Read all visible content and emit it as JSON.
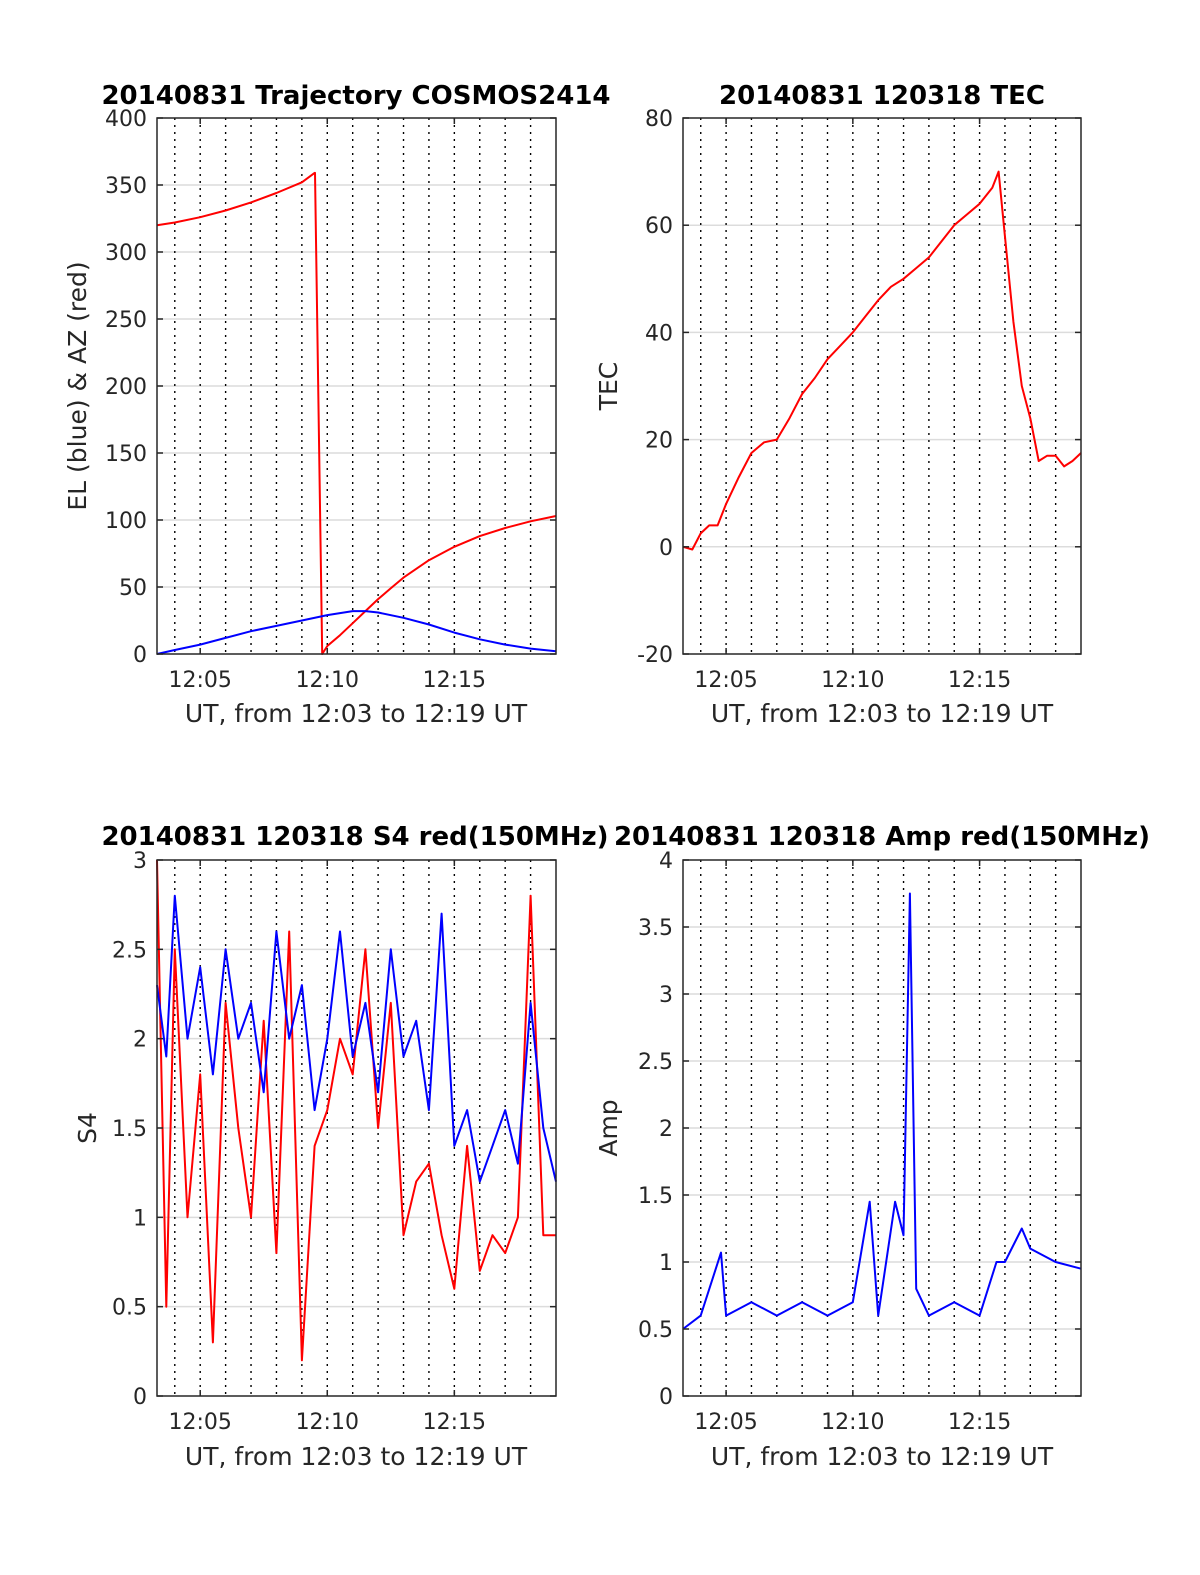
{
  "chart_data": [
    {
      "id": "p1",
      "type": "line",
      "title": "20140831 Trajectory COSMOS2414",
      "xlabel": "UT, from 12:03 to 12:19 UT",
      "ylabel": "EL (blue) & AZ (red)",
      "xlim": [
        "12:03:18",
        "12:19:00"
      ],
      "ylim": [
        0,
        400
      ],
      "yticks": [
        0,
        50,
        100,
        150,
        200,
        250,
        300,
        350,
        400
      ],
      "xticks": [
        "12:05",
        "12:10",
        "12:15"
      ],
      "grid": true,
      "colors": {
        "AZ": "#ff0000",
        "EL": "#0000ff"
      },
      "series": [
        {
          "color": "#ff0000",
          "x": [
            "12:03:18",
            "12:04:00",
            "12:05:00",
            "12:06:00",
            "12:07:00",
            "12:08:00",
            "12:09:00",
            "12:09:30",
            "12:09:31",
            "12:09:48",
            "12:10:00",
            "12:10:30",
            "12:11:00",
            "12:11:30",
            "12:12:00",
            "12:12:30",
            "12:13:00",
            "12:14:00",
            "12:15:00",
            "12:16:00",
            "12:17:00",
            "12:18:00",
            "12:19:00"
          ],
          "values": [
            320,
            322,
            326,
            331,
            337,
            344,
            352,
            359,
            359,
            0,
            6,
            14,
            23,
            32,
            41,
            49,
            57,
            70,
            80,
            88,
            94,
            99,
            103
          ]
        },
        {
          "color": "#0000ff",
          "x": [
            "12:03:18",
            "12:04:00",
            "12:05:00",
            "12:06:00",
            "12:07:00",
            "12:08:00",
            "12:09:00",
            "12:10:00",
            "12:11:00",
            "12:11:30",
            "12:12:00",
            "12:13:00",
            "12:14:00",
            "12:15:00",
            "12:16:00",
            "12:17:00",
            "12:18:00",
            "12:19:00"
          ],
          "values": [
            0,
            3,
            7,
            12,
            17,
            21,
            25,
            29,
            32,
            32,
            31,
            27,
            22,
            16,
            11,
            7,
            4,
            2
          ]
        }
      ]
    },
    {
      "id": "p2",
      "type": "line",
      "title": "20140831 120318 TEC",
      "xlabel": "UT, from 12:03 to 12:19 UT",
      "ylabel": "TEC",
      "xlim": [
        "12:03:18",
        "12:19:00"
      ],
      "ylim": [
        -20,
        80
      ],
      "yticks": [
        -20,
        0,
        20,
        40,
        60,
        80
      ],
      "xticks": [
        "12:05",
        "12:10",
        "12:15"
      ],
      "grid": true,
      "series": [
        {
          "color": "#ff0000",
          "x": [
            "12:03:18",
            "12:03:40",
            "12:04:00",
            "12:04:20",
            "12:04:40",
            "12:05:00",
            "12:05:30",
            "12:06:00",
            "12:06:30",
            "12:07:00",
            "12:07:30",
            "12:08:00",
            "12:08:30",
            "12:09:00",
            "12:09:30",
            "12:10:00",
            "12:10:30",
            "12:11:00",
            "12:11:30",
            "12:12:00",
            "12:12:30",
            "12:13:00",
            "12:13:30",
            "12:14:00",
            "12:14:30",
            "12:15:00",
            "12:15:30",
            "12:15:45",
            "12:16:00",
            "12:16:20",
            "12:16:40",
            "12:17:00",
            "12:17:20",
            "12:17:40",
            "12:18:00",
            "12:18:20",
            "12:18:40",
            "12:19:00"
          ],
          "values": [
            0,
            -0.5,
            2.5,
            4,
            4,
            8,
            13,
            17.5,
            19.5,
            20,
            24,
            28.5,
            31.5,
            35,
            37.5,
            40,
            43,
            46,
            48.5,
            50,
            52,
            54,
            57,
            60,
            62,
            64,
            67,
            70,
            58,
            42,
            30,
            24,
            16,
            17,
            17,
            15,
            16,
            17.5
          ]
        }
      ]
    },
    {
      "id": "p3",
      "type": "line",
      "title": "20140831 120318 S4 red(150MHz)",
      "xlabel": "UT, from 12:03 to 12:19 UT",
      "ylabel": "S4",
      "xlim": [
        "12:03:18",
        "12:19:00"
      ],
      "ylim": [
        0,
        3
      ],
      "yticks": [
        0,
        0.5,
        1,
        1.5,
        2,
        2.5,
        3
      ],
      "xticks": [
        "12:05",
        "12:10",
        "12:15"
      ],
      "grid": true,
      "series": [
        {
          "color": "#ff0000",
          "x": [
            "12:03:18",
            "12:03:40",
            "12:04:00",
            "12:04:30",
            "12:05:00",
            "12:05:30",
            "12:06:00",
            "12:06:30",
            "12:07:00",
            "12:07:30",
            "12:08:00",
            "12:08:30",
            "12:09:00",
            "12:09:30",
            "12:10:00",
            "12:10:30",
            "12:11:00",
            "12:11:30",
            "12:12:00",
            "12:12:30",
            "12:13:00",
            "12:13:30",
            "12:14:00",
            "12:14:30",
            "12:15:00",
            "12:15:30",
            "12:16:00",
            "12:16:30",
            "12:17:00",
            "12:17:30",
            "12:18:00",
            "12:18:30",
            "12:19:00"
          ],
          "values": [
            3,
            0.5,
            2.5,
            1,
            1.8,
            0.3,
            2.2,
            1.5,
            1.0,
            2.1,
            0.8,
            2.6,
            0.2,
            1.4,
            1.6,
            2.0,
            1.8,
            2.5,
            1.5,
            2.2,
            0.9,
            1.2,
            1.3,
            0.9,
            0.6,
            1.4,
            0.7,
            0.9,
            0.8,
            1.0,
            2.8,
            0.9,
            0.9
          ]
        },
        {
          "color": "#0000ff",
          "x": [
            "12:03:18",
            "12:03:40",
            "12:04:00",
            "12:04:30",
            "12:05:00",
            "12:05:30",
            "12:06:00",
            "12:06:30",
            "12:07:00",
            "12:07:30",
            "12:08:00",
            "12:08:30",
            "12:09:00",
            "12:09:30",
            "12:10:00",
            "12:10:30",
            "12:11:00",
            "12:11:30",
            "12:12:00",
            "12:12:30",
            "12:13:00",
            "12:13:30",
            "12:14:00",
            "12:14:30",
            "12:15:00",
            "12:15:30",
            "12:16:00",
            "12:16:30",
            "12:17:00",
            "12:17:30",
            "12:18:00",
            "12:18:30",
            "12:19:00"
          ],
          "values": [
            2.3,
            1.9,
            2.8,
            2.0,
            2.4,
            1.8,
            2.5,
            2.0,
            2.2,
            1.7,
            2.6,
            2.0,
            2.3,
            1.6,
            2.0,
            2.6,
            1.9,
            2.2,
            1.7,
            2.5,
            1.9,
            2.1,
            1.6,
            2.7,
            1.4,
            1.6,
            1.2,
            1.4,
            1.6,
            1.3,
            2.2,
            1.5,
            1.2
          ]
        }
      ]
    },
    {
      "id": "p4",
      "type": "line",
      "title": "20140831 120318 Amp red(150MHz)",
      "xlabel": "UT, from 12:03 to 12:19 UT",
      "ylabel": "Amp",
      "xlim": [
        "12:03:18",
        "12:19:00"
      ],
      "ylim": [
        0,
        4
      ],
      "yticks": [
        0,
        0.5,
        1,
        1.5,
        2,
        2.5,
        3,
        3.5,
        4
      ],
      "xticks": [
        "12:05",
        "12:10",
        "12:15"
      ],
      "grid": true,
      "series": [
        {
          "color": "#0000ff",
          "x": [
            "12:03:18",
            "12:04:00",
            "12:04:48",
            "12:05:00",
            "12:06:00",
            "12:07:00",
            "12:08:00",
            "12:09:00",
            "12:10:00",
            "12:10:40",
            "12:11:00",
            "12:11:40",
            "12:12:00",
            "12:12:15",
            "12:12:30",
            "12:13:00",
            "12:14:00",
            "12:15:00",
            "12:15:40",
            "12:16:00",
            "12:16:40",
            "12:17:00",
            "12:18:00",
            "12:19:00"
          ],
          "values": [
            0.5,
            0.6,
            1.07,
            0.6,
            0.7,
            0.6,
            0.7,
            0.6,
            0.7,
            1.45,
            0.6,
            1.45,
            1.2,
            3.75,
            0.8,
            0.6,
            0.7,
            0.6,
            1.0,
            1.0,
            1.25,
            1.1,
            1.0,
            0.95
          ]
        }
      ]
    }
  ]
}
